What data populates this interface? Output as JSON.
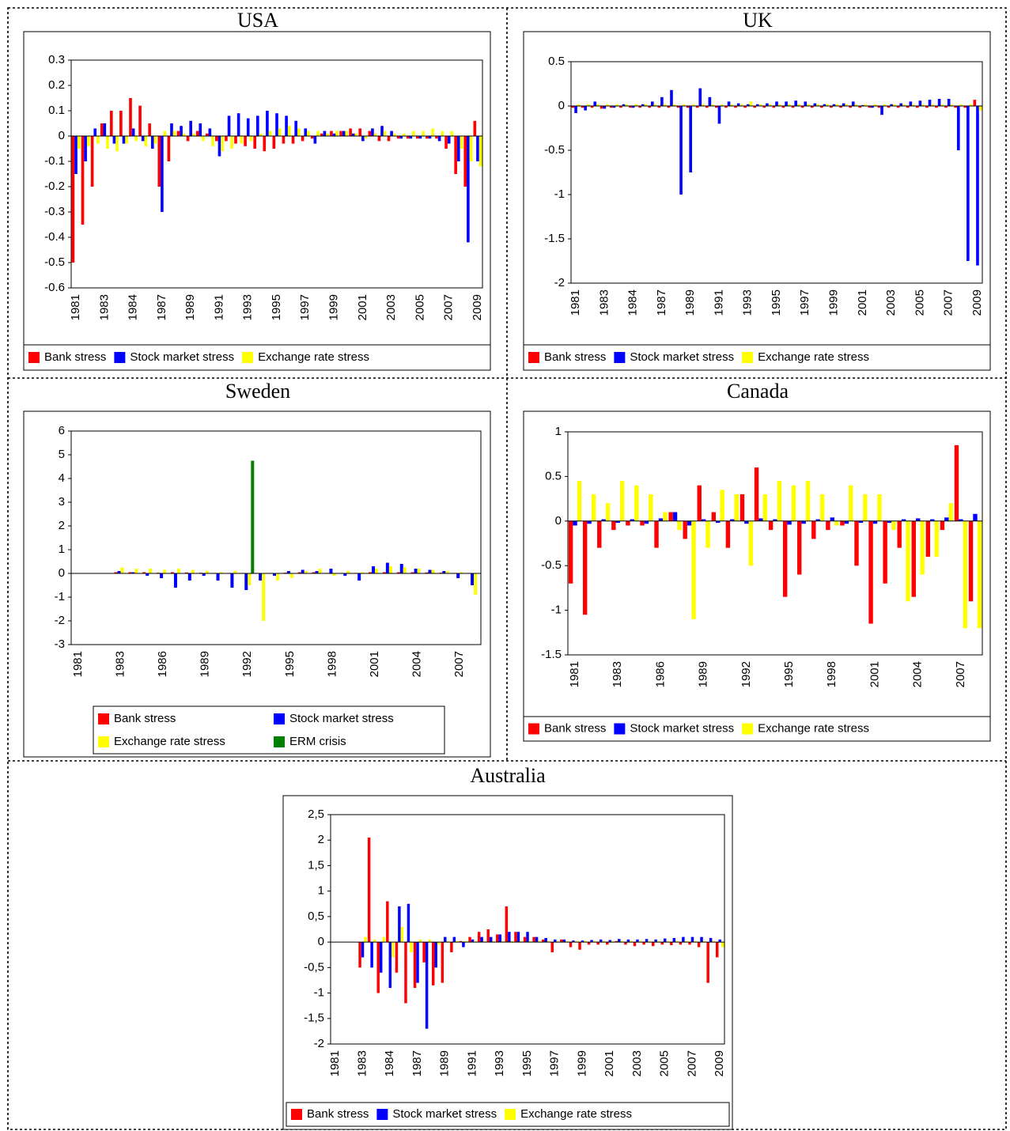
{
  "chart_data": [
    {
      "type": "bar",
      "title": "USA",
      "legend": "bottom",
      "categories": [
        "1981",
        null,
        null,
        "1983",
        null,
        null,
        "1984",
        null,
        null,
        "1987",
        null,
        null,
        "1989",
        null,
        null,
        "1991",
        null,
        null,
        "1993",
        null,
        null,
        "1995",
        null,
        null,
        "1997",
        null,
        null,
        "1999",
        null,
        null,
        "2001",
        null,
        null,
        "2003",
        null,
        null,
        "2005",
        null,
        null,
        "2007",
        null,
        null,
        "2009"
      ],
      "ylim": [
        -0.6,
        0.3
      ],
      "yticks": [
        -0.6,
        -0.5,
        -0.4,
        -0.3,
        -0.2,
        -0.1,
        0,
        0.1,
        0.2,
        0.3
      ],
      "series": [
        {
          "name": "Bank stress",
          "color": "#ff0000",
          "values": [
            -0.5,
            -0.35,
            -0.2,
            0.05,
            0.1,
            0.1,
            0.15,
            0.12,
            0.05,
            -0.2,
            -0.1,
            0.02,
            -0.02,
            0.02,
            0.01,
            -0.02,
            -0.02,
            -0.03,
            -0.04,
            -0.05,
            -0.06,
            -0.05,
            -0.03,
            -0.03,
            -0.02,
            -0.01,
            0.01,
            0.02,
            0.02,
            0.03,
            0.03,
            0.02,
            -0.02,
            -0.02,
            -0.01,
            -0.01,
            -0.01,
            -0.01,
            -0.01,
            -0.05,
            -0.15,
            -0.2,
            0.06
          ]
        },
        {
          "name": "Stock market stress",
          "color": "#0000ff",
          "values": [
            -0.15,
            -0.1,
            0.03,
            0.05,
            -0.03,
            -0.03,
            0.03,
            -0.02,
            -0.05,
            -0.3,
            0.05,
            0.04,
            0.06,
            0.05,
            0.03,
            -0.08,
            0.08,
            0.09,
            0.07,
            0.08,
            0.1,
            0.09,
            0.08,
            0.06,
            0.03,
            -0.03,
            0.02,
            0.01,
            0.02,
            0.01,
            -0.02,
            0.03,
            0.04,
            0.02,
            -0.01,
            -0.01,
            -0.01,
            -0.01,
            -0.02,
            -0.03,
            -0.1,
            -0.42,
            -0.1
          ]
        },
        {
          "name": "Exchange rate stress",
          "color": "#ffff00",
          "values": [
            -0.05,
            -0.04,
            -0.03,
            -0.05,
            -0.06,
            -0.03,
            -0.02,
            -0.04,
            -0.03,
            0.02,
            0.02,
            0.01,
            0.01,
            -0.02,
            -0.04,
            -0.06,
            -0.05,
            -0.03,
            -0.02,
            0.01,
            0.02,
            0.03,
            0.04,
            0.03,
            0.02,
            0.02,
            0.01,
            0.02,
            0.02,
            0.01,
            -0.01,
            0.01,
            0.02,
            0.01,
            0.01,
            0.02,
            0.02,
            0.03,
            0.02,
            0.02,
            -0.05,
            -0.1,
            -0.12
          ]
        }
      ]
    },
    {
      "type": "bar",
      "title": "UK",
      "legend": "bottom",
      "categories": [
        "1981",
        null,
        null,
        "1983",
        null,
        null,
        "1984",
        null,
        null,
        "1987",
        null,
        null,
        "1989",
        null,
        null,
        "1991",
        null,
        null,
        "1993",
        null,
        null,
        "1995",
        null,
        null,
        "1997",
        null,
        null,
        "1999",
        null,
        null,
        "2001",
        null,
        null,
        "2003",
        null,
        null,
        "2005",
        null,
        null,
        "2007",
        null,
        null,
        "2009"
      ],
      "ylim": [
        -2,
        0.5
      ],
      "yticks": [
        -2,
        -1.5,
        -1,
        -0.5,
        0,
        0.5
      ],
      "series": [
        {
          "name": "Bank stress",
          "color": "#ff0000",
          "values": [
            -0.02,
            -0.02,
            -0.02,
            -0.03,
            -0.02,
            -0.02,
            -0.02,
            -0.02,
            -0.02,
            -0.02,
            -0.02,
            -0.02,
            -0.02,
            -0.02,
            -0.02,
            -0.02,
            -0.02,
            -0.02,
            -0.02,
            -0.02,
            -0.02,
            -0.02,
            -0.02,
            -0.02,
            -0.02,
            -0.02,
            -0.02,
            -0.02,
            -0.02,
            -0.02,
            -0.02,
            -0.02,
            -0.02,
            -0.02,
            -0.02,
            -0.02,
            -0.02,
            -0.02,
            -0.02,
            -0.02,
            -0.02,
            -0.02,
            0.07
          ]
        },
        {
          "name": "Stock market stress",
          "color": "#0000ff",
          "values": [
            -0.08,
            -0.05,
            0.05,
            -0.03,
            -0.02,
            0.02,
            -0.02,
            0.02,
            0.05,
            0.1,
            0.18,
            -1.0,
            -0.75,
            0.2,
            0.1,
            -0.2,
            0.05,
            0.03,
            0.02,
            0.02,
            0.03,
            0.05,
            0.05,
            0.06,
            0.05,
            0.03,
            0.02,
            0.02,
            0.03,
            0.05,
            0.01,
            -0.02,
            -0.1,
            0.02,
            0.03,
            0.05,
            0.06,
            0.07,
            0.08,
            0.08,
            -0.5,
            -1.75,
            -1.8
          ]
        },
        {
          "name": "Exchange rate stress",
          "color": "#ffff00",
          "values": [
            0.02,
            0.02,
            0.02,
            0.02,
            0.02,
            0.02,
            0.02,
            0.02,
            0.02,
            0.02,
            0.02,
            0.02,
            0.02,
            0.02,
            0.02,
            0.02,
            0.02,
            0.02,
            0.05,
            0.02,
            0.02,
            0.02,
            0.02,
            0.02,
            0.02,
            0.02,
            0.02,
            0.02,
            0.02,
            0.02,
            0.02,
            0.02,
            0.02,
            0.02,
            0.02,
            0.02,
            0.02,
            0.02,
            0.02,
            0.02,
            0.02,
            0.02,
            -0.05
          ]
        }
      ]
    },
    {
      "type": "bar",
      "title": "Sweden",
      "legend": "bottom",
      "categories": [
        "1981",
        null,
        null,
        "1983",
        null,
        null,
        "1986",
        null,
        null,
        "1989",
        null,
        null,
        "1992",
        null,
        null,
        "1995",
        null,
        null,
        "1998",
        null,
        null,
        "2001",
        null,
        null,
        "2004",
        null,
        null,
        "2007",
        null
      ],
      "ylim": [
        -3,
        6
      ],
      "yticks": [
        -3,
        -2,
        -1,
        0,
        1,
        2,
        3,
        4,
        5,
        6
      ],
      "series": [
        {
          "name": "Bank stress",
          "color": "#ff0000",
          "values": [
            null,
            null,
            null,
            0.05,
            0.05,
            0.05,
            0.03,
            0.05,
            0.04,
            0.03,
            0.02,
            0.02,
            0.02,
            0.02,
            0.02,
            0.03,
            0.05,
            0.05,
            0.02,
            0.02,
            0.02,
            0.05,
            0.05,
            0.05,
            0.05,
            0.04,
            0.03,
            0.02,
            0.02
          ]
        },
        {
          "name": "Stock market stress",
          "color": "#0000ff",
          "values": [
            null,
            null,
            null,
            0.1,
            0.05,
            -0.1,
            -0.2,
            -0.6,
            -0.3,
            -0.1,
            -0.3,
            -0.6,
            -0.7,
            -0.3,
            -0.1,
            0.1,
            0.15,
            0.1,
            0.2,
            -0.1,
            -0.3,
            0.3,
            0.45,
            0.4,
            0.2,
            0.15,
            0.1,
            -0.2,
            -0.5
          ]
        },
        {
          "name": "Exchange rate stress",
          "color": "#ffff00",
          "values": [
            null,
            null,
            null,
            0.25,
            0.2,
            0.2,
            0.15,
            0.2,
            0.15,
            0.1,
            0.05,
            0.1,
            -0.5,
            -2,
            -0.3,
            -0.2,
            0.1,
            0.2,
            -0.1,
            0.1,
            0.05,
            0.2,
            0.3,
            0.25,
            0.2,
            0.15,
            0.1,
            0.05,
            -0.9
          ]
        },
        {
          "name": "ERM crisis",
          "color": "#008000",
          "values": [
            null,
            null,
            null,
            null,
            null,
            null,
            null,
            null,
            null,
            null,
            null,
            null,
            4.75,
            null,
            null,
            null,
            null,
            null,
            null,
            null,
            null,
            null,
            null,
            null,
            null,
            null,
            null,
            null,
            null
          ]
        }
      ]
    },
    {
      "type": "bar",
      "title": "Canada",
      "legend": "bottom",
      "categories": [
        "1981",
        null,
        null,
        "1983",
        null,
        null,
        "1986",
        null,
        null,
        "1989",
        null,
        null,
        "1992",
        null,
        null,
        "1995",
        null,
        null,
        "1998",
        null,
        null,
        "2001",
        null,
        null,
        "2004",
        null,
        null,
        "2007",
        null
      ],
      "ylim": [
        -1.5,
        1
      ],
      "yticks": [
        -1.5,
        -1,
        -0.5,
        0,
        0.5,
        1
      ],
      "series": [
        {
          "name": "Bank stress",
          "color": "#ff0000",
          "values": [
            -0.7,
            -1.05,
            -0.3,
            -0.1,
            -0.05,
            -0.05,
            -0.3,
            0.1,
            -0.2,
            0.4,
            0.1,
            -0.3,
            0.3,
            0.6,
            -0.1,
            -0.85,
            -0.6,
            -0.2,
            -0.1,
            -0.05,
            -0.5,
            -1.15,
            -0.7,
            -0.3,
            -0.85,
            -0.4,
            -0.1,
            0.85,
            -0.9
          ]
        },
        {
          "name": "Stock market stress",
          "color": "#0000ff",
          "values": [
            -0.05,
            -0.03,
            0.02,
            -0.02,
            0.02,
            -0.03,
            0.03,
            0.1,
            -0.05,
            0.02,
            -0.02,
            0.02,
            -0.03,
            0.03,
            0.02,
            -0.04,
            -0.03,
            0.02,
            0.04,
            -0.03,
            -0.02,
            -0.03,
            -0.02,
            0.02,
            0.03,
            0.02,
            0.04,
            0.02,
            0.08
          ]
        },
        {
          "name": "Exchange rate stress",
          "color": "#ffff00",
          "values": [
            0.45,
            0.3,
            0.2,
            0.45,
            0.4,
            0.3,
            0.1,
            -0.1,
            -1.1,
            -0.3,
            0.35,
            0.3,
            -0.5,
            0.3,
            0.45,
            0.4,
            0.45,
            0.3,
            -0.05,
            0.4,
            0.3,
            0.3,
            -0.1,
            -0.9,
            -0.6,
            -0.4,
            0.2,
            -1.2,
            -1.2
          ]
        }
      ]
    },
    {
      "type": "bar",
      "title": "Australia",
      "legend": "bottom",
      "categories": [
        "1981",
        null,
        null,
        "1983",
        null,
        null,
        "1984",
        null,
        null,
        "1987",
        null,
        null,
        "1989",
        null,
        null,
        "1991",
        null,
        null,
        "1993",
        null,
        null,
        "1995",
        null,
        null,
        "1997",
        null,
        null,
        "1999",
        null,
        null,
        "2001",
        null,
        null,
        "2003",
        null,
        null,
        "2005",
        null,
        null,
        "2007",
        null,
        null,
        "2009"
      ],
      "ylim": [
        -2,
        2.5
      ],
      "yticks": [
        -2,
        {
          "value": -1.5,
          "label": "-1,5"
        },
        -1,
        {
          "value": -0.5,
          "label": "-0,5"
        },
        0,
        {
          "value": 0.5,
          "label": "0,5"
        },
        1,
        {
          "value": 1.5,
          "label": "1,5"
        },
        2,
        {
          "value": 2.5,
          "label": "2,5"
        }
      ],
      "series": [
        {
          "name": "Bank stress",
          "color": "#ff0000",
          "values": [
            null,
            null,
            null,
            -0.5,
            2.05,
            -1.0,
            0.8,
            -0.6,
            -1.2,
            -0.9,
            -0.4,
            -0.85,
            -0.8,
            -0.2,
            0.02,
            0.1,
            0.2,
            0.25,
            0.15,
            0.7,
            0.2,
            0.1,
            0.1,
            0.05,
            -0.2,
            0.05,
            -0.1,
            -0.15,
            -0.05,
            -0.05,
            -0.05,
            0.02,
            -0.05,
            -0.08,
            -0.05,
            -0.08,
            -0.05,
            -0.06,
            -0.05,
            -0.05,
            -0.1,
            -0.8,
            -0.3
          ]
        },
        {
          "name": "Stock market stress",
          "color": "#0000ff",
          "values": [
            null,
            null,
            null,
            -0.3,
            -0.5,
            -0.6,
            -0.9,
            0.7,
            0.75,
            -0.8,
            -1.7,
            -0.5,
            0.1,
            0.1,
            -0.1,
            0.05,
            0.1,
            0.1,
            0.15,
            0.2,
            0.2,
            0.2,
            0.1,
            0.08,
            0.05,
            0.05,
            0.03,
            0.03,
            0.04,
            0.05,
            0.04,
            0.06,
            0.05,
            0.05,
            0.06,
            0.05,
            0.07,
            0.08,
            0.1,
            0.1,
            0.1,
            0.08,
            0.05
          ]
        },
        {
          "name": "Exchange rate stress",
          "color": "#ffff00",
          "values": [
            null,
            null,
            null,
            0.1,
            0.05,
            0.1,
            -0.3,
            0.3,
            -0.2,
            0.05,
            0.05,
            -0.05,
            0.02,
            0.02,
            0.02,
            0.02,
            0.02,
            0.02,
            0.02,
            0.02,
            0.02,
            0.02,
            0.02,
            0.02,
            0.02,
            0.02,
            0.02,
            0.02,
            0.02,
            0.02,
            0.02,
            0.02,
            0.02,
            0.02,
            0.02,
            0.02,
            0.02,
            0.02,
            0.02,
            0.02,
            0.02,
            0.02,
            -0.1
          ]
        }
      ]
    }
  ]
}
